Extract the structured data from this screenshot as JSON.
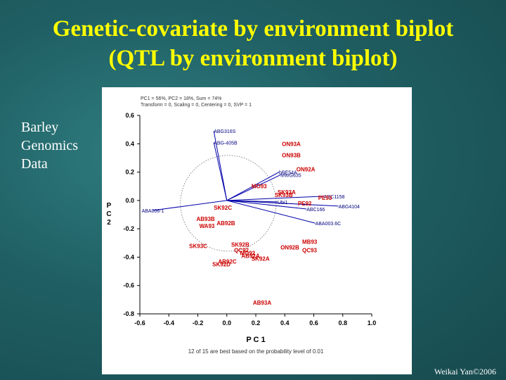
{
  "slide": {
    "title_line1": "Genetic-covariate by environment biplot",
    "title_line2": "(QTL by environment biplot)",
    "side_text": [
      "Barley",
      "Genomics",
      "Data"
    ],
    "credit": "Weikai Yan©2006"
  },
  "colors": {
    "background": "#1f5f63",
    "title": "#ffff00",
    "environment_labels": "#cc0000",
    "marker_labels": "#000080",
    "vectors": "#0000aa"
  },
  "chart_data": {
    "type": "scatter",
    "title": "",
    "xlabel": "P C 1",
    "ylabel": "P C 2",
    "xlim": [
      -0.6,
      1.0
    ],
    "ylim": [
      -0.8,
      0.6
    ],
    "xticks": [
      -0.6,
      -0.4,
      -0.2,
      0.0,
      0.2,
      0.4,
      0.6,
      0.8,
      1.0
    ],
    "yticks": [
      -0.8,
      -0.6,
      -0.4,
      -0.2,
      0.0,
      0.2,
      0.4,
      0.6
    ],
    "xtick_labels": [
      "-0.6",
      "-0.4",
      "-0.2",
      "0.0",
      "0.2",
      "0.4",
      "0.6",
      "0.8",
      "1.0"
    ],
    "ytick_labels": [
      "-0.8",
      "-0.6",
      "-0.4",
      "-0.2",
      "0.0",
      "0.2",
      "0.4",
      "0.6"
    ],
    "grid": false,
    "header_lines": [
      "PC1 = 56%, PC2 = 18%, Sum = 74%",
      "Transform = 0, Scaling = 0, Centering = 0, SVP = 1"
    ],
    "footnote": "12 of 15 are best based on the probability level of 0.01",
    "series": [
      {
        "name": "environments",
        "points": [
          {
            "label": "ON93A",
            "x": 0.38,
            "y": 0.4
          },
          {
            "label": "ON93B",
            "x": 0.38,
            "y": 0.32
          },
          {
            "label": "ON92A",
            "x": 0.48,
            "y": 0.22
          },
          {
            "label": "MO93",
            "x": 0.17,
            "y": 0.1
          },
          {
            "label": "SK93A",
            "x": 0.35,
            "y": 0.06
          },
          {
            "label": "SK93B",
            "x": 0.33,
            "y": 0.04
          },
          {
            "label": "PE93",
            "x": 0.63,
            "y": 0.02
          },
          {
            "label": "PE92",
            "x": 0.49,
            "y": -0.02
          },
          {
            "label": "SK92C",
            "x": -0.09,
            "y": -0.05
          },
          {
            "label": "AB93B",
            "x": -0.21,
            "y": -0.13
          },
          {
            "label": "AB92B",
            "x": -0.07,
            "y": -0.16
          },
          {
            "label": "WA93",
            "x": -0.19,
            "y": -0.18
          },
          {
            "label": "SK93C",
            "x": -0.26,
            "y": -0.32
          },
          {
            "label": "SK92B",
            "x": 0.03,
            "y": -0.31
          },
          {
            "label": "QC92",
            "x": 0.05,
            "y": -0.35
          },
          {
            "label": "MO92",
            "x": 0.09,
            "y": -0.37
          },
          {
            "label": "AB92A",
            "x": 0.1,
            "y": -0.39
          },
          {
            "label": "SK92A",
            "x": 0.17,
            "y": -0.41
          },
          {
            "label": "AB92C",
            "x": -0.06,
            "y": -0.43
          },
          {
            "label": "SK92D",
            "x": -0.1,
            "y": -0.45
          },
          {
            "label": "MB93",
            "x": 0.52,
            "y": -0.29
          },
          {
            "label": "ON92B",
            "x": 0.37,
            "y": -0.33
          },
          {
            "label": "QC93",
            "x": 0.52,
            "y": -0.35
          },
          {
            "label": "AB93A",
            "x": 0.18,
            "y": -0.72
          }
        ]
      },
      {
        "name": "markers",
        "points": [
          {
            "label": "ABG316S",
            "x": -0.09,
            "y": 0.49
          },
          {
            "label": "ABG-405B",
            "x": -0.09,
            "y": 0.41
          },
          {
            "label": "bBE54A",
            "x": 0.36,
            "y": 0.2
          },
          {
            "label": "MWG635",
            "x": 0.37,
            "y": 0.18
          },
          {
            "label": "ABC1158",
            "x": 0.67,
            "y": 0.03
          },
          {
            "label": "Ubi1",
            "x": 0.35,
            "y": -0.01
          },
          {
            "label": "ABG4104",
            "x": 0.77,
            "y": -0.04
          },
          {
            "label": "ABC166",
            "x": 0.55,
            "y": -0.06
          },
          {
            "label": "ABA006-1",
            "x": -0.51,
            "y": -0.07
          },
          {
            "label": "ABA003.6C",
            "x": 0.61,
            "y": -0.16
          }
        ]
      }
    ]
  }
}
